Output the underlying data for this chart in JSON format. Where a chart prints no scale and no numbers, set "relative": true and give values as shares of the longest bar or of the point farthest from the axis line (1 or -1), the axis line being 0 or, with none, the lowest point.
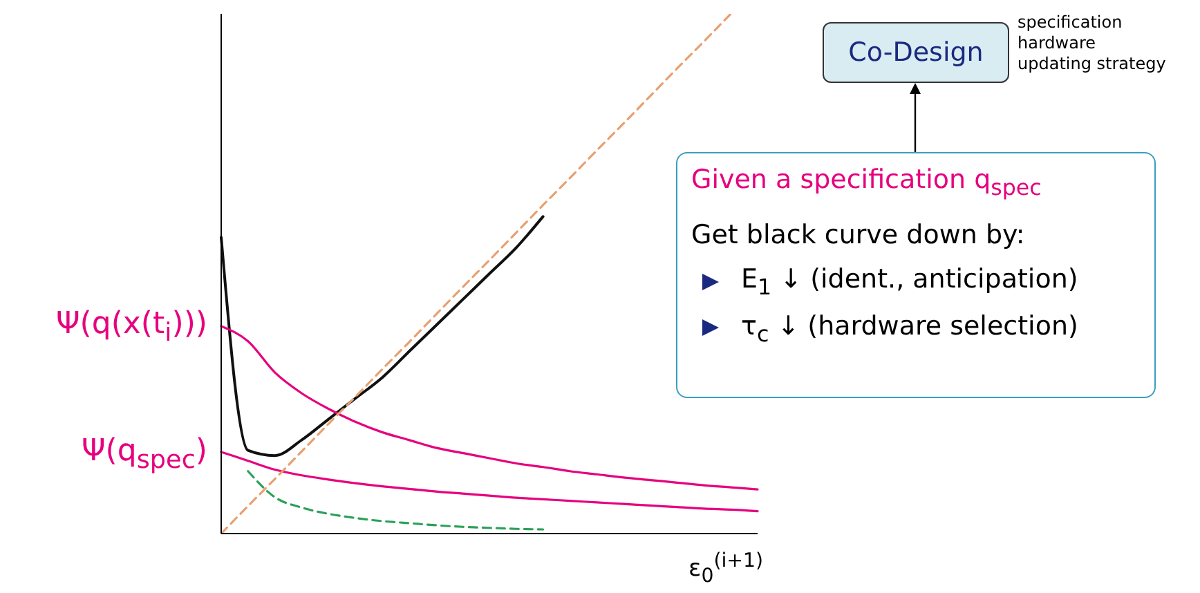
{
  "chart_data": {
    "type": "line",
    "relative": true,
    "xlabel": "ε$_{0}$$^{(i+1)}$",
    "categories": [
      null,
      null,
      null,
      null,
      null,
      null,
      null,
      null,
      null,
      null,
      null,
      null,
      null,
      null,
      null,
      null,
      null,
      null,
      null,
      null,
      null
    ],
    "series": [
      {
        "color": "#111111",
        "line_style": "solid",
        "values": [
          0.57,
          0.16,
          0.15,
          0.18,
          0.22,
          0.26,
          0.3,
          0.35,
          0.4,
          0.45,
          0.5,
          0.55,
          0.61,
          null,
          null,
          null,
          null,
          null,
          null,
          null,
          null
        ]
      },
      {
        "color": "#e6007e",
        "line_style": "solid",
        "values": [
          0.399,
          0.37,
          0.31,
          0.27,
          0.24,
          0.215,
          0.195,
          0.18,
          0.165,
          0.155,
          0.145,
          0.135,
          0.128,
          0.12,
          0.114,
          0.108,
          0.103,
          0.098,
          0.093,
          0.089,
          0.085
        ]
      },
      {
        "color": "#e6007e",
        "line_style": "solid",
        "values": [
          0.157,
          0.14,
          0.123,
          0.112,
          0.104,
          0.097,
          0.091,
          0.086,
          0.081,
          0.077,
          0.073,
          0.069,
          0.066,
          0.063,
          0.06,
          0.057,
          0.054,
          0.051,
          0.048,
          0.046,
          0.043
        ]
      },
      {
        "color": "#2ca05a",
        "line_style": "dashed",
        "values": [
          null,
          0.12,
          0.07,
          0.05,
          0.038,
          0.03,
          0.024,
          0.02,
          0.016,
          0.013,
          0.011,
          0.009,
          0.008,
          null,
          null,
          null,
          null,
          null,
          null,
          null,
          null
        ]
      },
      {
        "color": "#e8a070",
        "line_style": "dashed",
        "values": [
          0,
          0.053,
          0.105,
          0.158,
          0.211,
          0.263,
          0.316,
          0.368,
          0.421,
          0.474,
          0.526,
          0.579,
          0.632,
          0.684,
          0.737,
          0.789,
          0.842,
          0.895,
          0.947,
          1,
          null
        ]
      }
    ],
    "annotations": [
      "Ψ(q(x(t$_{i}$)))",
      "Ψ(q$_{spec}$)",
      "Co-Design",
      "specification",
      "hardware",
      "updating strategy",
      "Given a specification q$_{spec}$",
      "Get black curve down by:",
      "E$_{1}$ ↓ (ident., anticipation)",
      "τ$_{c}$ ↓ (hardware selection)"
    ]
  }
}
